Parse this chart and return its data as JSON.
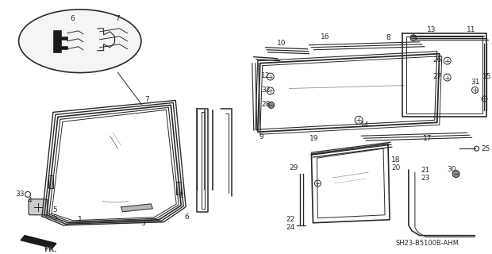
{
  "bg_color": "#ffffff",
  "line_color": "#2a2a2a",
  "watermark": "SH23-B5100B-AHM",
  "fs": 6.5
}
